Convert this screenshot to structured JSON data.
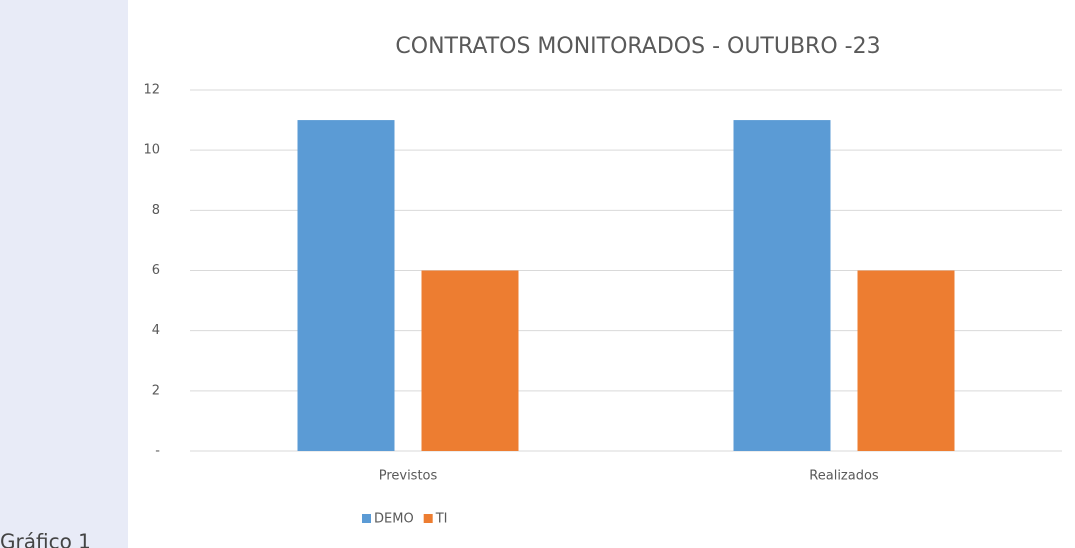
{
  "caption": "Gráfico 1",
  "chart_data": {
    "type": "bar",
    "title": "CONTRATOS MONITORADOS - OUTUBRO -23",
    "categories": [
      "Previstos",
      "Realizados"
    ],
    "series": [
      {
        "name": "DEMO",
        "color": "#5b9bd5",
        "values": [
          11,
          11
        ]
      },
      {
        "name": "TI",
        "color": "#ed7d31",
        "values": [
          6,
          6
        ]
      }
    ],
    "ylim": [
      0,
      12
    ],
    "yticks": [
      {
        "value": 0,
        "label": "-"
      },
      2,
      4,
      6,
      8,
      10,
      12
    ],
    "grid": true,
    "legend": "bottom"
  }
}
